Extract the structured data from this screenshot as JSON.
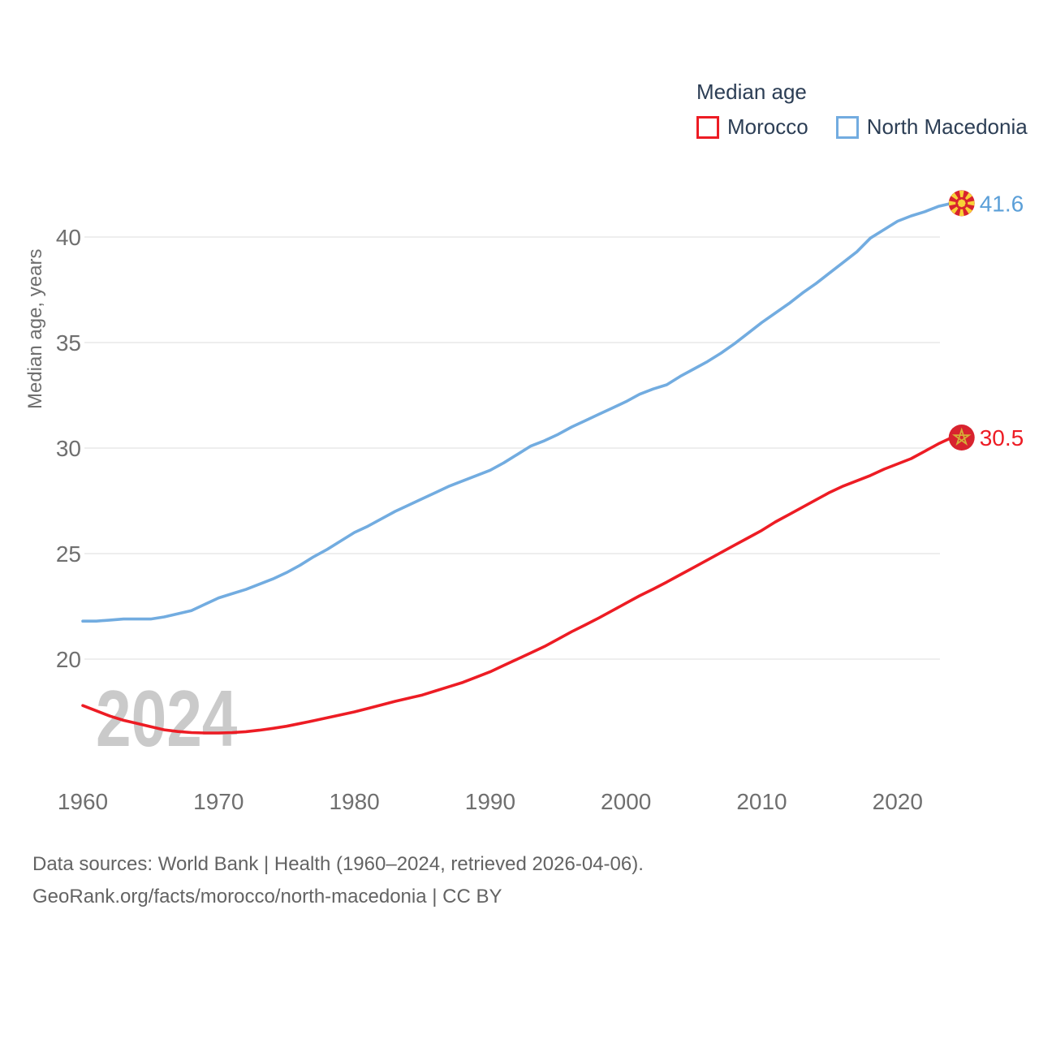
{
  "legend": {
    "title": "Median age",
    "items": [
      {
        "label": "Morocco",
        "color": "#ed1c24"
      },
      {
        "label": "North Macedonia",
        "color": "#72ace0"
      }
    ]
  },
  "watermark": "2024",
  "y_axis_title": "Median age, years",
  "footer": {
    "line1": "Data sources: World Bank | Health (1960–2024, retrieved 2026-04-06).",
    "line2": "GeoRank.org/facts/morocco/north-macedonia | CC BY"
  },
  "colors": {
    "morocco_line": "#ed1c24",
    "north_macedonia_line": "#72ace0",
    "tick_text": "#6f6f6f",
    "gridline": "#e8e8e8",
    "legend_text": "#2c3e55",
    "flag_red": "#d8232e",
    "flag_yellow": "#f8d137",
    "flag_star_gold": "#d4af37",
    "end_label_blue": "#5b9fd8",
    "end_label_red": "#ed1c24"
  },
  "chart_data": {
    "type": "line",
    "title": "Median age",
    "ylabel": "Median age, years",
    "xlabel": "",
    "grid": "horizontal",
    "legend_position": "top-right",
    "x_ticks": [
      1960,
      1970,
      1980,
      1990,
      2000,
      2010,
      2020
    ],
    "y_ticks": [
      20,
      25,
      30,
      35,
      40
    ],
    "xlim": [
      1960,
      2024
    ],
    "ylim": [
      16,
      42.5
    ],
    "x": [
      1960,
      1961,
      1962,
      1963,
      1964,
      1965,
      1966,
      1967,
      1968,
      1969,
      1970,
      1971,
      1972,
      1973,
      1974,
      1975,
      1976,
      1977,
      1978,
      1979,
      1980,
      1981,
      1982,
      1983,
      1984,
      1985,
      1986,
      1987,
      1988,
      1989,
      1990,
      1991,
      1992,
      1993,
      1994,
      1995,
      1996,
      1997,
      1998,
      1999,
      2000,
      2001,
      2002,
      2003,
      2004,
      2005,
      2006,
      2007,
      2008,
      2009,
      2010,
      2011,
      2012,
      2013,
      2014,
      2015,
      2016,
      2017,
      2018,
      2019,
      2020,
      2021,
      2022,
      2023,
      2024
    ],
    "series": [
      {
        "name": "Morocco",
        "color": "#ed1c24",
        "end_label": "30.5",
        "end_label_color": "#ed1c24",
        "flag": "morocco",
        "values": [
          17.8,
          17.55,
          17.3,
          17.1,
          16.95,
          16.8,
          16.65,
          16.57,
          16.52,
          16.5,
          16.5,
          16.52,
          16.56,
          16.63,
          16.72,
          16.82,
          16.95,
          17.08,
          17.22,
          17.36,
          17.5,
          17.66,
          17.83,
          18.0,
          18.15,
          18.3,
          18.5,
          18.7,
          18.9,
          19.15,
          19.4,
          19.7,
          20.0,
          20.3,
          20.6,
          20.95,
          21.3,
          21.62,
          21.95,
          22.3,
          22.65,
          23.0,
          23.32,
          23.65,
          24.0,
          24.35,
          24.7,
          25.05,
          25.4,
          25.75,
          26.1,
          26.5,
          26.85,
          27.2,
          27.55,
          27.9,
          28.2,
          28.45,
          28.7,
          29.0,
          29.25,
          29.5,
          29.85,
          30.2,
          30.5
        ]
      },
      {
        "name": "North Macedonia",
        "color": "#72ace0",
        "end_label": "41.6",
        "end_label_color": "#5b9fd8",
        "flag": "north-macedonia",
        "values": [
          21.8,
          21.8,
          21.85,
          21.9,
          21.9,
          21.9,
          22.0,
          22.15,
          22.3,
          22.6,
          22.9,
          23.1,
          23.3,
          23.55,
          23.8,
          24.1,
          24.45,
          24.85,
          25.2,
          25.6,
          26.0,
          26.3,
          26.65,
          27.0,
          27.3,
          27.6,
          27.9,
          28.2,
          28.45,
          28.7,
          28.95,
          29.3,
          29.7,
          30.1,
          30.35,
          30.65,
          31.0,
          31.3,
          31.6,
          31.9,
          32.2,
          32.55,
          32.8,
          33.0,
          33.4,
          33.75,
          34.1,
          34.5,
          34.95,
          35.45,
          35.95,
          36.4,
          36.85,
          37.35,
          37.8,
          38.3,
          38.8,
          39.3,
          39.95,
          40.35,
          40.75,
          41.0,
          41.2,
          41.45,
          41.6
        ]
      }
    ]
  }
}
